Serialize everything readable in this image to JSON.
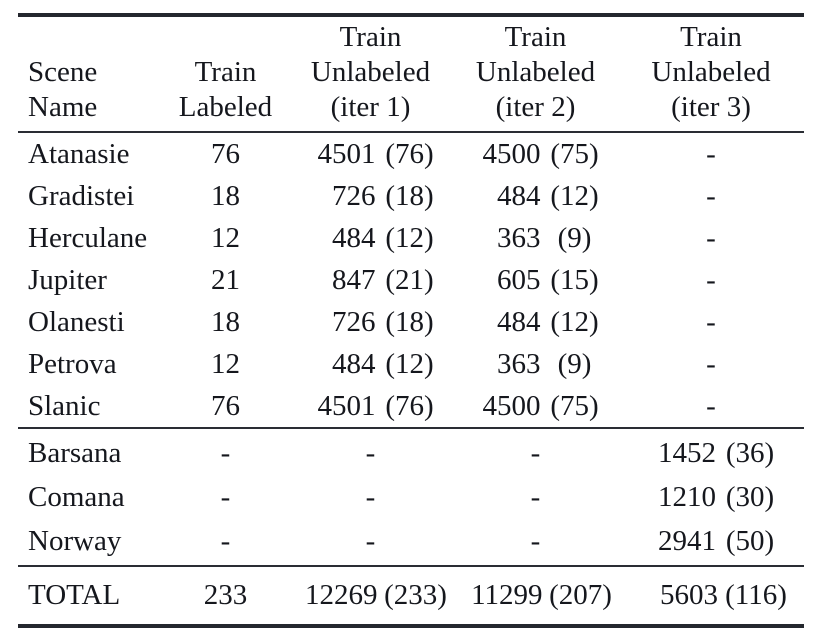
{
  "table": {
    "header": {
      "col1": [
        "Scene",
        "Name"
      ],
      "col2": [
        "Train",
        "Labeled"
      ],
      "col3": [
        "Train",
        "Unlabeled",
        "(iter 1)"
      ],
      "col4": [
        "Train",
        "Unlabeled",
        "(iter 2)"
      ],
      "col5": [
        "Train",
        "Unlabeled",
        "(iter 3)"
      ]
    },
    "dash": "-",
    "section1": [
      {
        "name": "Atanasie",
        "labeled": "76",
        "iter1_num": "4501",
        "iter1_par": "(76)",
        "iter2_num": "4500",
        "iter2_par": "(75)"
      },
      {
        "name": "Gradistei",
        "labeled": "18",
        "iter1_num": "726",
        "iter1_par": "(18)",
        "iter2_num": "484",
        "iter2_par": "(12)"
      },
      {
        "name": "Herculane",
        "labeled": "12",
        "iter1_num": "484",
        "iter1_par": "(12)",
        "iter2_num": "363",
        "iter2_par": "(9)"
      },
      {
        "name": "Jupiter",
        "labeled": "21",
        "iter1_num": "847",
        "iter1_par": "(21)",
        "iter2_num": "605",
        "iter2_par": "(15)"
      },
      {
        "name": "Olanesti",
        "labeled": "18",
        "iter1_num": "726",
        "iter1_par": "(18)",
        "iter2_num": "484",
        "iter2_par": "(12)"
      },
      {
        "name": "Petrova",
        "labeled": "12",
        "iter1_num": "484",
        "iter1_par": "(12)",
        "iter2_num": "363",
        "iter2_par": "(9)"
      },
      {
        "name": "Slanic",
        "labeled": "76",
        "iter1_num": "4501",
        "iter1_par": "(76)",
        "iter2_num": "4500",
        "iter2_par": "(75)"
      }
    ],
    "section2": [
      {
        "name": "Barsana",
        "iter3_num": "1452",
        "iter3_par": "(36)"
      },
      {
        "name": "Comana",
        "iter3_num": "1210",
        "iter3_par": "(30)"
      },
      {
        "name": "Norway",
        "iter3_num": "2941",
        "iter3_par": "(50)"
      }
    ],
    "total": {
      "name": "TOTAL",
      "labeled": "233",
      "iter1_num": "12269",
      "iter1_par": "(233)",
      "iter2_num": "11299",
      "iter2_par": "(207)",
      "iter3_num": "5603",
      "iter3_par": "(116)"
    }
  },
  "chart_data": {
    "type": "table",
    "columns": [
      "Scene Name",
      "Train Labeled",
      "Train Unlabeled (iter 1)",
      "Train Unlabeled (iter 2)",
      "Train Unlabeled (iter 3)"
    ],
    "rows": [
      [
        "Atanasie",
        "76",
        "4501 (76)",
        "4500 (75)",
        "-"
      ],
      [
        "Gradistei",
        "18",
        "726 (18)",
        "484 (12)",
        "-"
      ],
      [
        "Herculane",
        "12",
        "484 (12)",
        "363 (9)",
        "-"
      ],
      [
        "Jupiter",
        "21",
        "847 (21)",
        "605 (15)",
        "-"
      ],
      [
        "Olanesti",
        "18",
        "726 (18)",
        "484 (12)",
        "-"
      ],
      [
        "Petrova",
        "12",
        "484 (12)",
        "363 (9)",
        "-"
      ],
      [
        "Slanic",
        "76",
        "4501 (76)",
        "4500 (75)",
        "-"
      ],
      [
        "Barsana",
        "-",
        "-",
        "-",
        "1452 (36)"
      ],
      [
        "Comana",
        "-",
        "-",
        "-",
        "1210 (30)"
      ],
      [
        "Norway",
        "-",
        "-",
        "-",
        "2941 (50)"
      ],
      [
        "TOTAL",
        "233",
        "12269 (233)",
        "11299 (207)",
        "5603 (116)"
      ]
    ]
  }
}
